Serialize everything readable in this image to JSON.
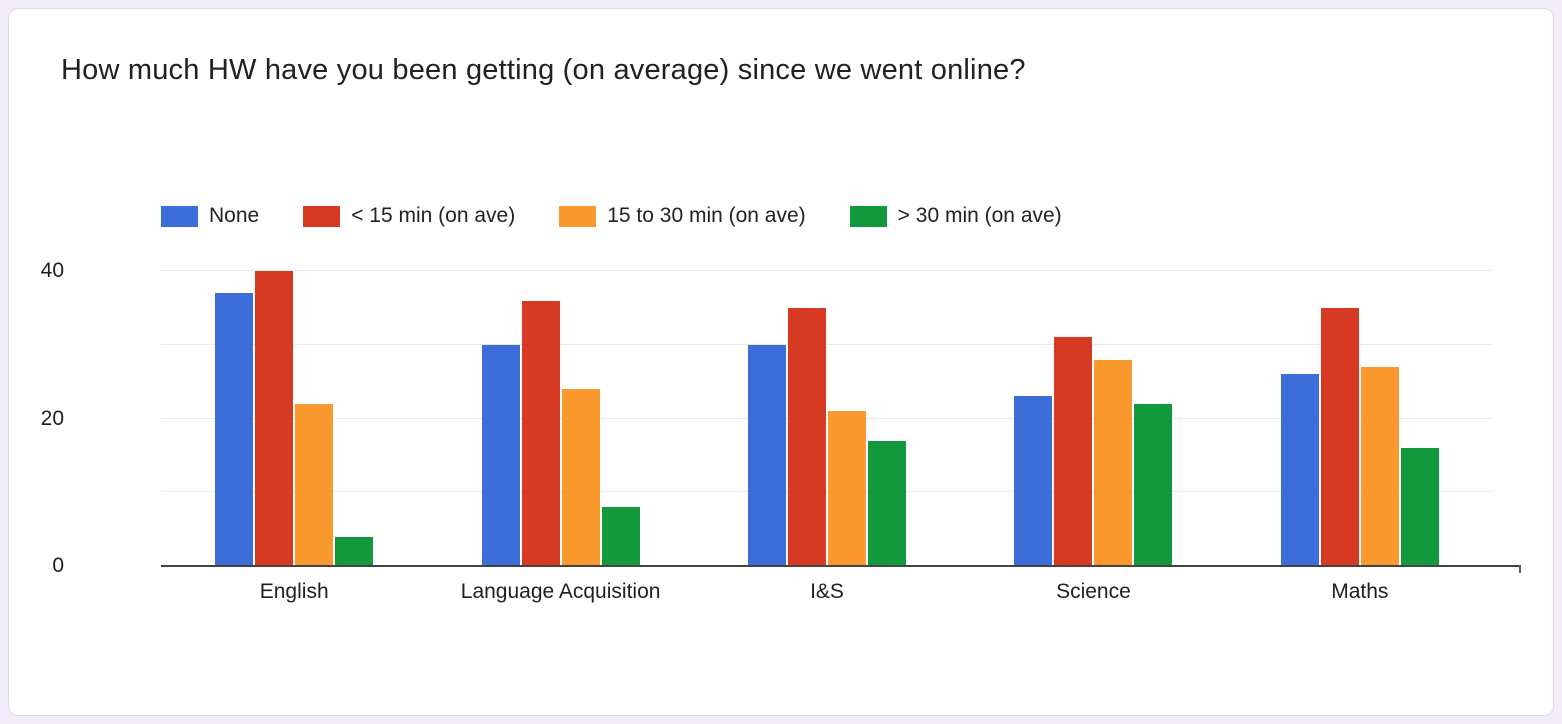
{
  "page": {
    "title": "How much HW have you been getting (on average) since we went online?"
  },
  "chart_data": {
    "type": "bar",
    "title": "How much HW have you been getting (on average) since we went online?",
    "categories": [
      "English",
      "Language Acquisition",
      "I&S",
      "Science",
      "Maths"
    ],
    "series": [
      {
        "name": "None",
        "color": "#3d6dd8",
        "values": [
          37,
          30,
          30,
          23,
          26
        ]
      },
      {
        "name": "< 15 min (on ave)",
        "color": "#d73a22",
        "values": [
          40,
          36,
          35,
          31,
          35
        ]
      },
      {
        "name": "15 to 30 min (on ave)",
        "color": "#f9992e",
        "values": [
          22,
          24,
          21,
          28,
          27
        ]
      },
      {
        "name": "> 30 min (on ave)",
        "color": "#13993d",
        "values": [
          4,
          8,
          17,
          22,
          16
        ]
      }
    ],
    "xlabel": "",
    "ylabel": "",
    "ylim": [
      0,
      40
    ],
    "yticks_labeled": [
      0,
      20,
      40
    ],
    "gridlines": [
      10,
      20,
      30,
      40
    ],
    "grid": true,
    "legend_position": "top"
  }
}
